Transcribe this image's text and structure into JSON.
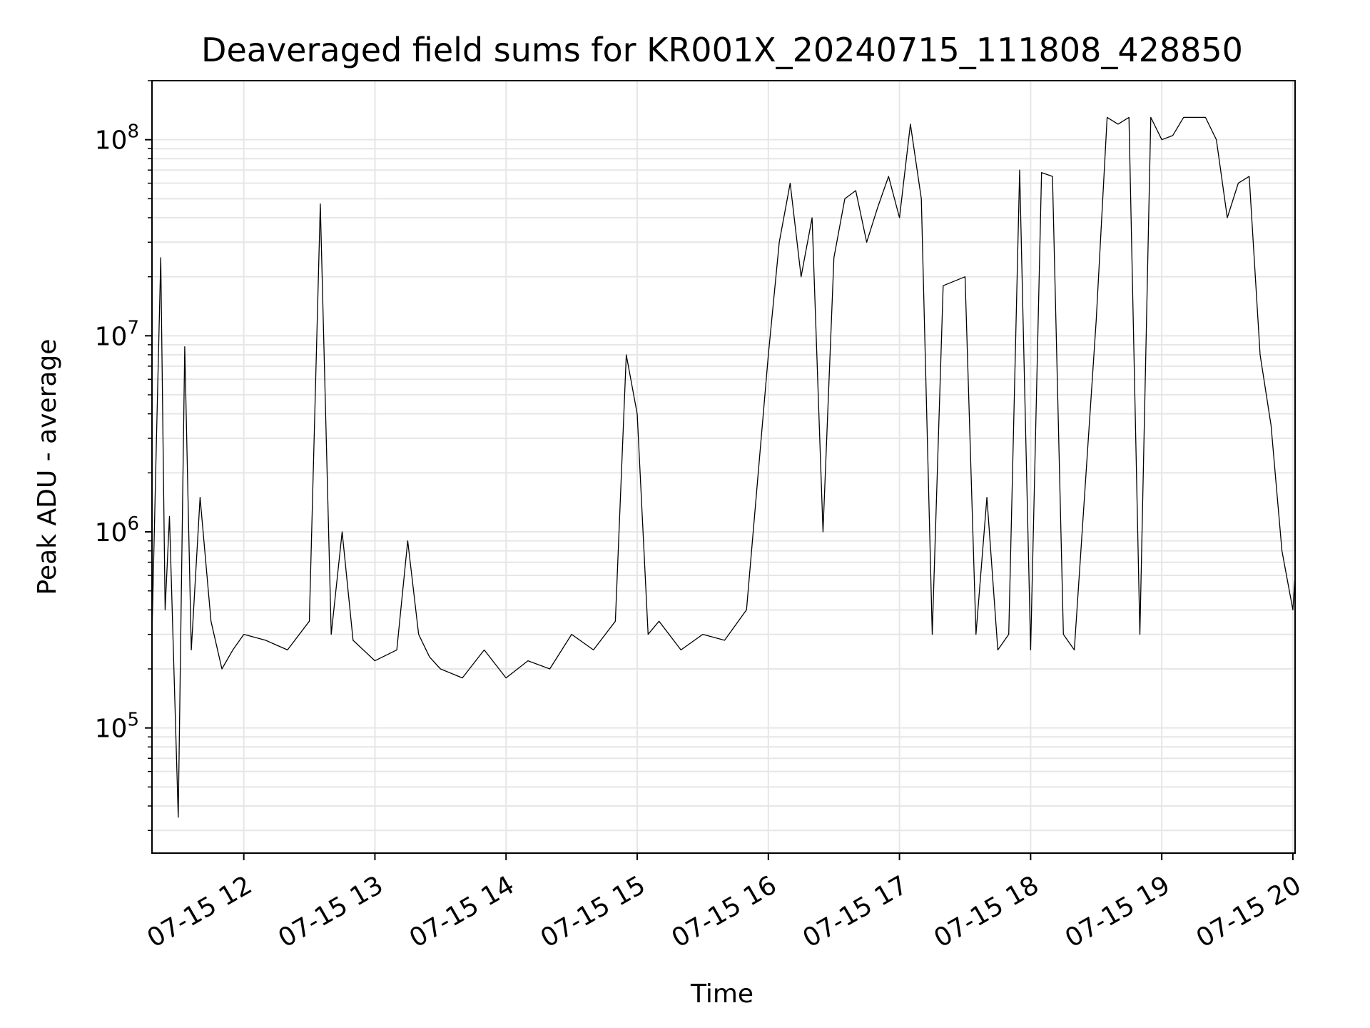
{
  "chart_data": {
    "type": "line",
    "title": "Deaveraged field sums for KR001X_20240715_111808_428850",
    "xlabel": "Time",
    "ylabel": "Peak ADU - average",
    "yscale": "log",
    "ylim": [
      23000,
      200000000
    ],
    "xlim": [
      "07-15 11:18",
      "07-15 20:01"
    ],
    "grid": true,
    "line_color": "#000000",
    "x_ticks": [
      "07-15 12",
      "07-15 13",
      "07-15 14",
      "07-15 15",
      "07-15 16",
      "07-15 17",
      "07-15 18",
      "07-15 19",
      "07-15 20"
    ],
    "y_ticks": [
      {
        "base": "10",
        "exp": "5",
        "value": 100000
      },
      {
        "base": "10",
        "exp": "6",
        "value": 1000000
      },
      {
        "base": "10",
        "exp": "7",
        "value": 10000000
      },
      {
        "base": "10",
        "exp": "8",
        "value": 100000000
      }
    ],
    "series": [
      {
        "x": [
          "11:18",
          "11:20",
          "11:22",
          "11:24",
          "11:26",
          "11:30",
          "11:33",
          "11:36",
          "11:40",
          "11:45",
          "11:50",
          "11:55",
          "12:00",
          "12:10",
          "12:20",
          "12:30",
          "12:35",
          "12:40",
          "12:45",
          "12:50",
          "13:00",
          "13:10",
          "13:15",
          "13:20",
          "13:25",
          "13:30",
          "13:40",
          "13:50",
          "14:00",
          "14:10",
          "14:20",
          "14:30",
          "14:40",
          "14:50",
          "14:55",
          "15:00",
          "15:05",
          "15:10",
          "15:20",
          "15:30",
          "15:40",
          "15:50",
          "16:00",
          "16:05",
          "16:10",
          "16:15",
          "16:20",
          "16:25",
          "16:30",
          "16:35",
          "16:40",
          "16:45",
          "16:50",
          "16:55",
          "17:00",
          "17:05",
          "17:10",
          "17:15",
          "17:20",
          "17:30",
          "17:35",
          "17:40",
          "17:45",
          "17:50",
          "17:55",
          "18:00",
          "18:05",
          "18:10",
          "18:15",
          "18:20",
          "18:30",
          "18:35",
          "18:40",
          "18:45",
          "18:50",
          "18:55",
          "19:00",
          "19:05",
          "19:10",
          "19:15",
          "19:20",
          "19:25",
          "19:30",
          "19:35",
          "19:40",
          "19:45",
          "19:50",
          "19:55",
          "20:00",
          "20:01"
        ],
        "y": [
          300000,
          2800000,
          25000000,
          400000,
          1200000,
          35000,
          8800000,
          250000,
          1500000,
          350000,
          200000,
          250000,
          300000,
          280000,
          250000,
          350000,
          47000000,
          300000,
          1000000,
          280000,
          220000,
          250000,
          900000,
          300000,
          230000,
          200000,
          180000,
          250000,
          180000,
          220000,
          200000,
          300000,
          250000,
          350000,
          8000000,
          4000000,
          300000,
          350000,
          250000,
          300000,
          280000,
          400000,
          8000000,
          30000000,
          60000000,
          20000000,
          40000000,
          1000000,
          25000000,
          50000000,
          55000000,
          30000000,
          45000000,
          65000000,
          40000000,
          120000000,
          50000000,
          300000,
          18000000,
          20000000,
          300000,
          1500000,
          250000,
          300000,
          70000000,
          250000,
          68000000,
          65000000,
          300000,
          250000,
          12000000,
          130000000,
          120000000,
          130000000,
          300000,
          130000000,
          100000000,
          105000000,
          130000000,
          130000000,
          130000000,
          100000000,
          40000000,
          60000000,
          65000000,
          8000000,
          3500000,
          800000,
          400000,
          600000
        ]
      }
    ]
  }
}
